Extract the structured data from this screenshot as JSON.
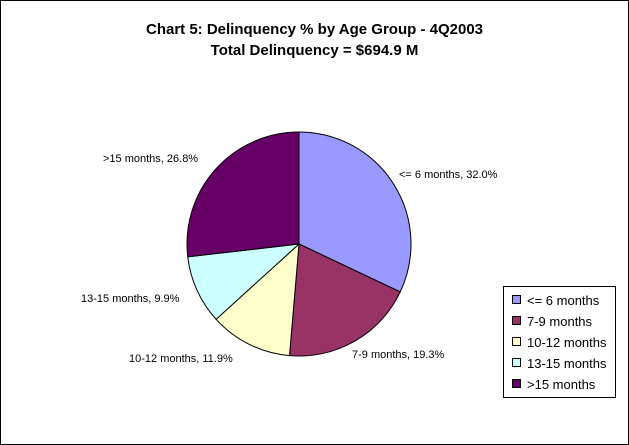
{
  "chart_data": {
    "type": "pie",
    "title": "Chart 5: Delinquency % by Age Group - 4Q2003",
    "subtitle": "Total Delinquency  = $694.9 M",
    "categories": [
      "<= 6 months",
      "7-9 months",
      "10-12 months",
      "13-15 months",
      ">15 months"
    ],
    "values": [
      32.0,
      19.3,
      11.9,
      9.9,
      26.8
    ],
    "unit": "%",
    "data_labels": [
      "<= 6 months, 32.0%",
      "7-9 months, 19.3%",
      "10-12 months, 11.9%",
      "13-15 months, 9.9%",
      ">15 months, 26.8%"
    ],
    "colors": [
      "#9999ff",
      "#993366",
      "#ffffcc",
      "#ccffff",
      "#660066"
    ],
    "legend": {
      "position": "bottom-right"
    },
    "start_angle": "12 o'clock",
    "direction": "clockwise"
  }
}
